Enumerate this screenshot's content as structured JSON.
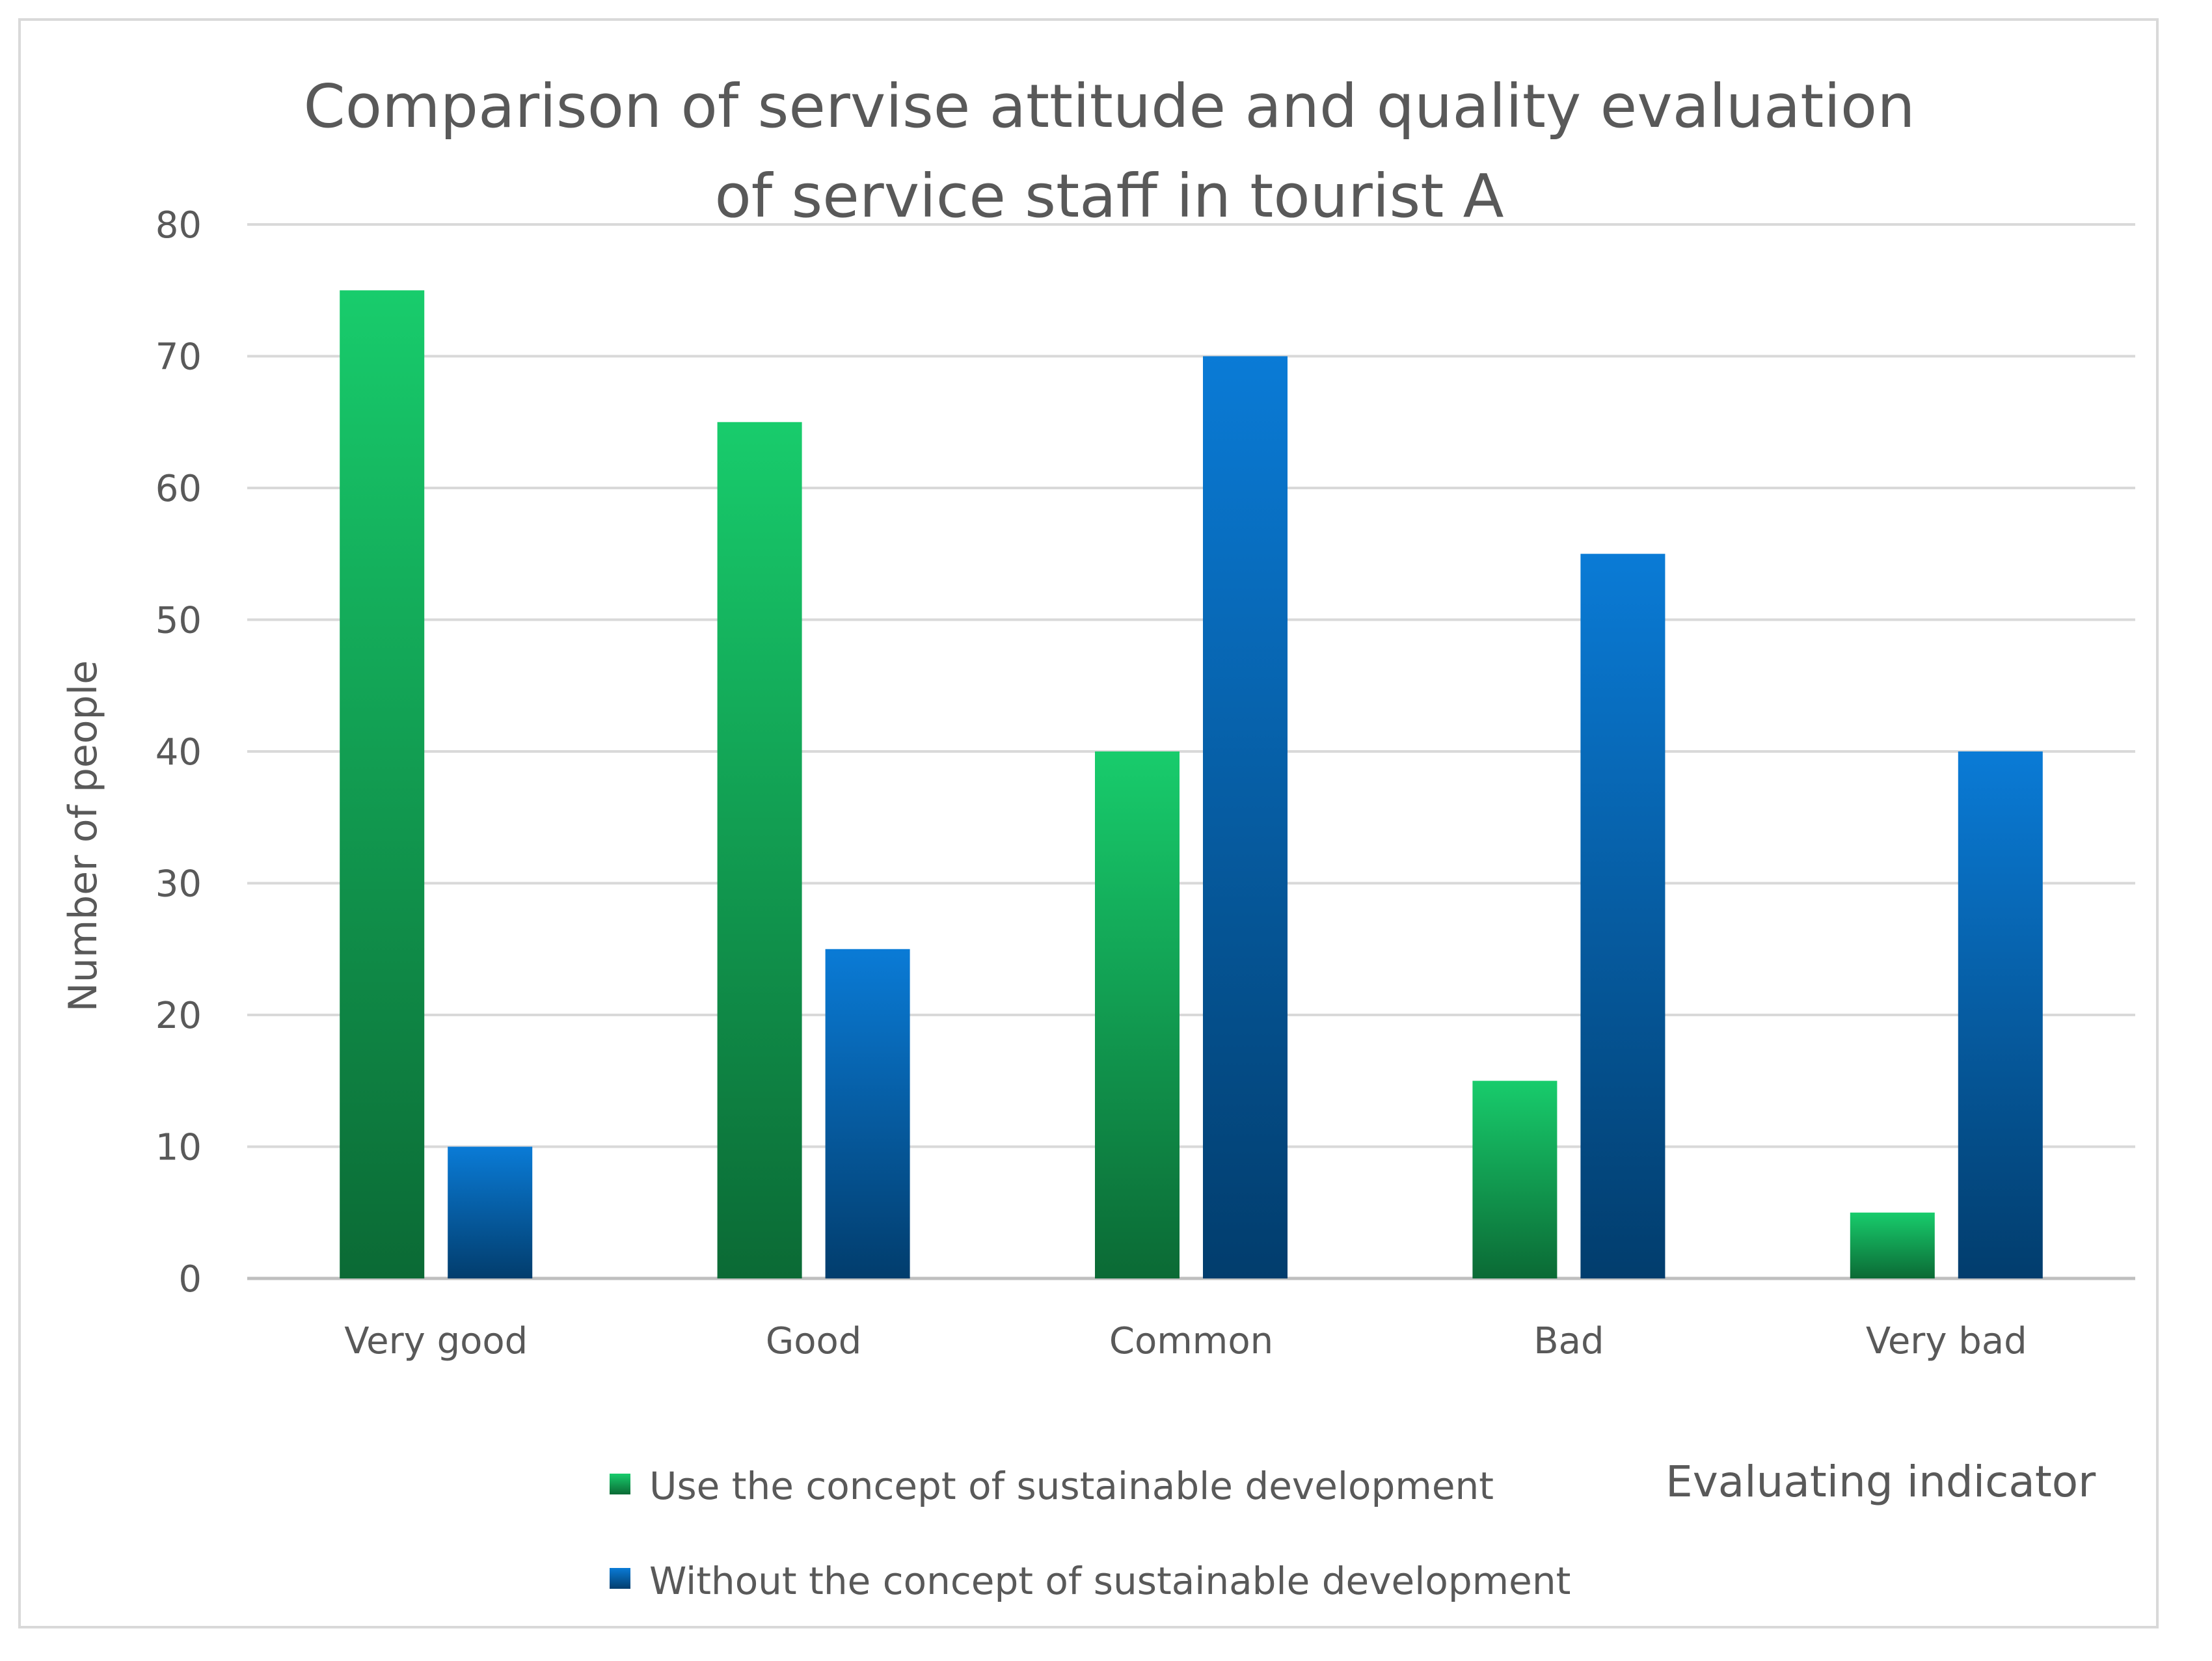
{
  "chart_data": {
    "type": "bar",
    "title": "Comparison of servise attitude and quality evaluation of service staff in tourist A",
    "title_lines": [
      "Comparison of servise attitude and quality evaluation",
      "of service staff in tourist A"
    ],
    "xlabel": "Evaluating indicator",
    "ylabel": "Number of people",
    "ylim": [
      0,
      80
    ],
    "yticks": [
      0,
      10,
      20,
      30,
      40,
      50,
      60,
      70,
      80
    ],
    "grid": true,
    "legend_position": "bottom",
    "categories": [
      "Very good",
      "Good",
      "Common",
      "Bad",
      "Very bad"
    ],
    "series": [
      {
        "name": "Use the concept of sustainable development",
        "values": [
          75,
          65,
          40,
          15,
          5
        ],
        "color_top": "#18cc6c",
        "color_bottom": "#0b6a35"
      },
      {
        "name": "Without the concept of sustainable development",
        "values": [
          10,
          25,
          70,
          55,
          40
        ],
        "color_top": "#0a7bd6",
        "color_bottom": "#023d6d"
      }
    ]
  },
  "colors": {
    "text": "#595959",
    "gridline": "#d9d9d9",
    "axis": "#bfbfbf"
  }
}
